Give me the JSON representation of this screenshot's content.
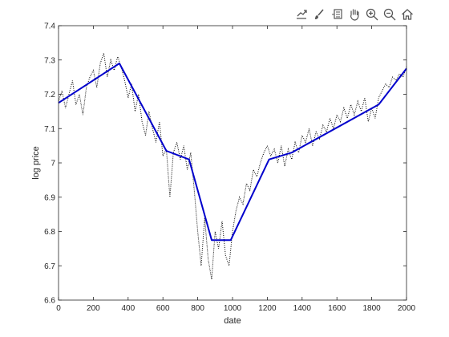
{
  "toolbar": {
    "items": [
      {
        "name": "export-icon"
      },
      {
        "name": "brush-icon"
      },
      {
        "name": "datatip-icon"
      },
      {
        "name": "pan-icon"
      },
      {
        "name": "zoom-in-icon"
      },
      {
        "name": "zoom-out-icon"
      },
      {
        "name": "home-icon"
      }
    ]
  },
  "chart_data": {
    "type": "line",
    "xlabel": "date",
    "ylabel": "log price",
    "xlim": [
      0,
      2000
    ],
    "ylim": [
      6.6,
      7.4
    ],
    "xticks": [
      0,
      200,
      400,
      600,
      800,
      1000,
      1200,
      1400,
      1600,
      1800,
      2000
    ],
    "yticks": [
      6.6,
      6.7,
      6.8,
      6.9,
      7,
      7.1,
      7.2,
      7.3,
      7.4
    ],
    "grid": false,
    "series": [
      {
        "style": "dotted",
        "color": "#000000",
        "x": [
          0,
          20,
          40,
          60,
          80,
          100,
          120,
          140,
          160,
          180,
          200,
          220,
          240,
          260,
          280,
          300,
          320,
          340,
          360,
          380,
          400,
          420,
          440,
          460,
          480,
          500,
          520,
          540,
          560,
          580,
          600,
          620,
          640,
          660,
          680,
          700,
          720,
          740,
          760,
          780,
          800,
          820,
          840,
          860,
          880,
          900,
          920,
          940,
          960,
          980,
          1000,
          1020,
          1040,
          1060,
          1080,
          1100,
          1120,
          1140,
          1160,
          1180,
          1200,
          1220,
          1240,
          1260,
          1280,
          1300,
          1320,
          1340,
          1360,
          1380,
          1400,
          1420,
          1440,
          1460,
          1480,
          1500,
          1520,
          1540,
          1560,
          1580,
          1600,
          1620,
          1640,
          1660,
          1680,
          1700,
          1720,
          1740,
          1760,
          1780,
          1800,
          1820,
          1840,
          1860,
          1880,
          1900,
          1920,
          1940,
          1960,
          1980,
          2000
        ],
        "y": [
          7.18,
          7.21,
          7.16,
          7.2,
          7.24,
          7.17,
          7.2,
          7.14,
          7.22,
          7.25,
          7.27,
          7.22,
          7.29,
          7.32,
          7.25,
          7.3,
          7.27,
          7.31,
          7.28,
          7.24,
          7.19,
          7.23,
          7.15,
          7.2,
          7.12,
          7.08,
          7.15,
          7.1,
          7.06,
          7.12,
          7.02,
          7.04,
          6.9,
          7.03,
          7.06,
          7.01,
          7.05,
          6.98,
          7.03,
          6.92,
          6.8,
          6.7,
          6.84,
          6.72,
          6.66,
          6.8,
          6.75,
          6.83,
          6.73,
          6.7,
          6.8,
          6.86,
          6.9,
          6.88,
          6.94,
          6.92,
          6.98,
          6.96,
          7.0,
          7.03,
          7.05,
          7.02,
          7.04,
          7.0,
          7.05,
          6.99,
          7.04,
          7.01,
          7.06,
          7.03,
          7.08,
          7.06,
          7.1,
          7.05,
          7.09,
          7.07,
          7.11,
          7.09,
          7.13,
          7.1,
          7.14,
          7.12,
          7.16,
          7.13,
          7.17,
          7.14,
          7.18,
          7.15,
          7.19,
          7.12,
          7.16,
          7.13,
          7.19,
          7.21,
          7.23,
          7.22,
          7.25,
          7.24,
          7.26,
          7.25,
          7.28
        ]
      },
      {
        "style": "solid",
        "color": "#0000cc",
        "x": [
          0,
          350,
          620,
          750,
          880,
          990,
          1210,
          1340,
          1840,
          2000
        ],
        "y": [
          7.175,
          7.29,
          7.035,
          7.01,
          6.775,
          6.775,
          7.01,
          7.03,
          7.17,
          7.275
        ]
      }
    ]
  }
}
